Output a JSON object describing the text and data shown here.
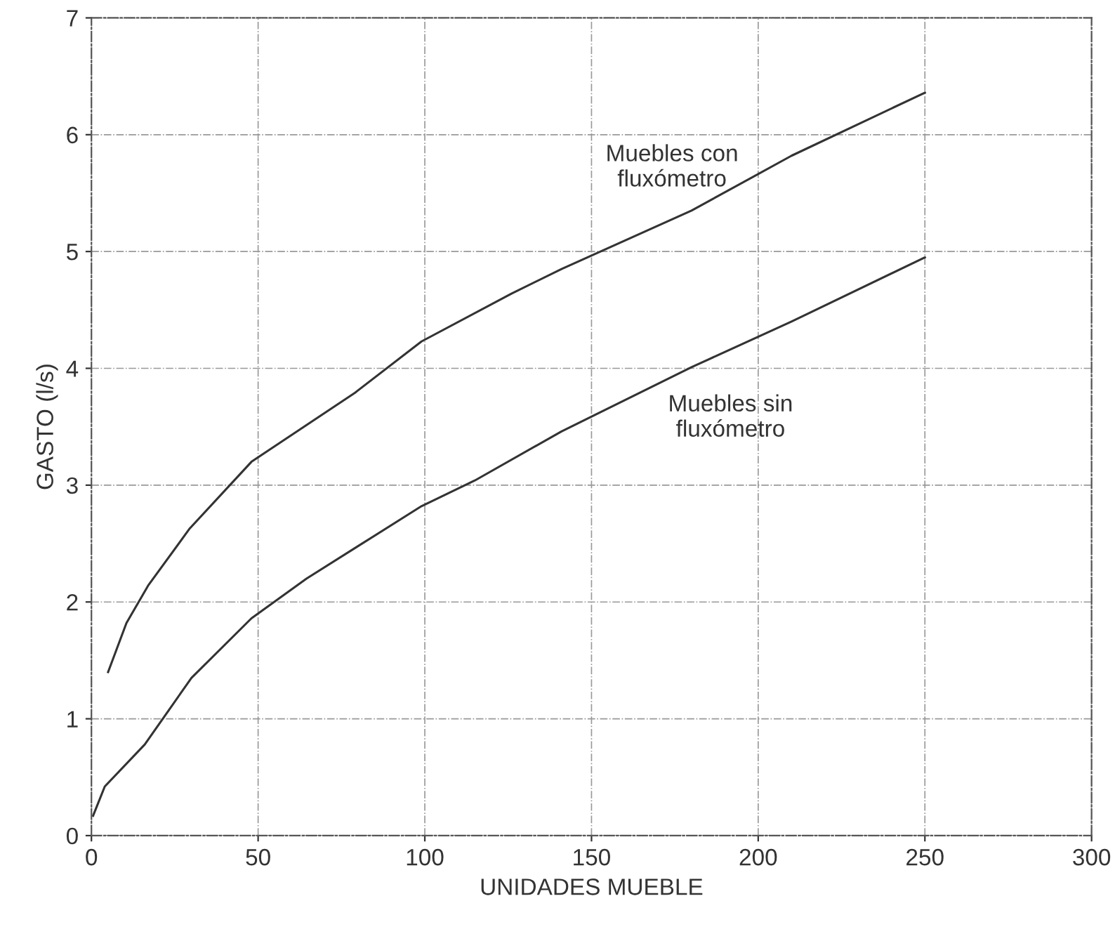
{
  "chart_data": {
    "type": "line",
    "xlabel": "UNIDADES MUEBLE",
    "ylabel": "GASTO (l/s)",
    "series": [
      {
        "name": "Muebles con\nfluxómetro",
        "color": "#333333",
        "x": [
          5,
          10.5,
          17,
          29.5,
          48,
          79,
          99,
          126,
          141,
          180,
          210,
          250
        ],
        "values": [
          1.4,
          1.82,
          2.14,
          2.63,
          3.2,
          3.79,
          4.23,
          4.64,
          4.85,
          5.35,
          5.82,
          6.36
        ]
      },
      {
        "name": "Muebles sin\nfluxómetro",
        "color": "#333333",
        "x": [
          0.5,
          4,
          16,
          30,
          48,
          64.5,
          99,
          115,
          141,
          180,
          210,
          250
        ],
        "values": [
          0.17,
          0.42,
          0.78,
          1.35,
          1.86,
          2.2,
          2.82,
          3.04,
          3.46,
          4.01,
          4.4,
          4.95
        ]
      }
    ],
    "xlim": [
      0,
      300
    ],
    "ylim": [
      0,
      7
    ],
    "xticks": [
      0,
      50,
      100,
      150,
      200,
      250,
      300
    ],
    "yticks": [
      0,
      1,
      2,
      3,
      4,
      5,
      6,
      7
    ],
    "grid": true,
    "legend": false,
    "marker": "none",
    "line_style": "solid"
  }
}
